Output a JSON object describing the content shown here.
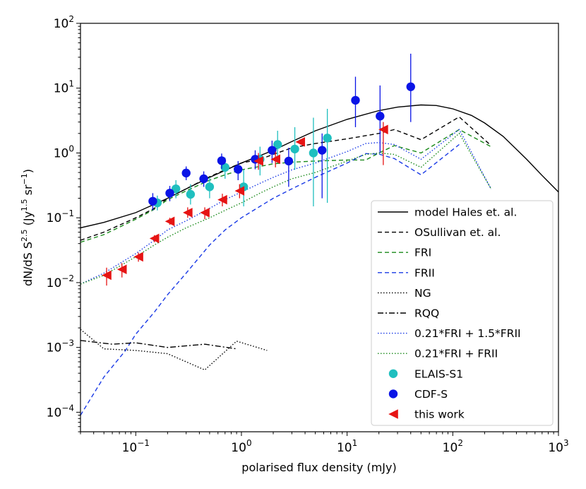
{
  "chart_data": {
    "type": "scatter",
    "xscale": "log",
    "yscale": "log",
    "xlim": [
      0.03,
      1000
    ],
    "ylim": [
      5e-05,
      100
    ],
    "xlabel": "polarised flux density (mJy)",
    "ylabel_main": "dN/dS S",
    "ylabel_exp": "2.5",
    "ylabel_unit_open": " (Jy",
    "ylabel_unit_exp1": "1.5",
    "ylabel_unit_mid": " sr",
    "ylabel_unit_exp2": "−1",
    "ylabel_unit_close": ")",
    "x_ticks": [
      {
        "value": 0.1,
        "base": "10",
        "exp": "−1"
      },
      {
        "value": 1,
        "base": "10",
        "exp": "0"
      },
      {
        "value": 10,
        "base": "10",
        "exp": "1"
      },
      {
        "value": 100,
        "base": "10",
        "exp": "2"
      },
      {
        "value": 1000,
        "base": "10",
        "exp": "3"
      }
    ],
    "y_ticks": [
      {
        "value": 0.0001,
        "base": "10",
        "exp": "−4"
      },
      {
        "value": 0.001,
        "base": "10",
        "exp": "−3"
      },
      {
        "value": 0.01,
        "base": "10",
        "exp": "−2"
      },
      {
        "value": 0.1,
        "base": "10",
        "exp": "−1"
      },
      {
        "value": 1,
        "base": "10",
        "exp": "0"
      },
      {
        "value": 10,
        "base": "10",
        "exp": "1"
      },
      {
        "value": 100,
        "base": "10",
        "exp": "2"
      }
    ],
    "lines": [
      {
        "name": "model Hales et. al.",
        "color": "#000000",
        "dash": "",
        "x": [
          0.03,
          0.05,
          0.1,
          0.2,
          0.3,
          0.5,
          1,
          2,
          3,
          5,
          10,
          20,
          30,
          50,
          70,
          100,
          150,
          200,
          300,
          500,
          700,
          1000
        ],
        "y": [
          0.07,
          0.085,
          0.12,
          0.2,
          0.28,
          0.42,
          0.7,
          1.1,
          1.5,
          2.2,
          3.3,
          4.5,
          5.1,
          5.5,
          5.4,
          4.8,
          3.8,
          2.9,
          1.8,
          0.8,
          0.45,
          0.25
        ]
      },
      {
        "name": "OSullivan et. al.",
        "color": "#000000",
        "dash": "6,4",
        "x": [
          0.03,
          0.05,
          0.1,
          0.15,
          0.2,
          0.3,
          0.5,
          0.7,
          1,
          1.5,
          2,
          3,
          5,
          10,
          20,
          28,
          50,
          115,
          230
        ],
        "y": [
          0.045,
          0.06,
          0.1,
          0.14,
          0.2,
          0.28,
          0.43,
          0.55,
          0.7,
          0.8,
          0.95,
          1.2,
          1.4,
          1.65,
          2.0,
          2.3,
          1.6,
          3.6,
          1.3
        ]
      },
      {
        "name": "FRI",
        "color": "#1a8a1a",
        "dash": "6,4",
        "x": [
          0.03,
          0.05,
          0.1,
          0.15,
          0.2,
          0.3,
          0.5,
          0.7,
          1,
          1.5,
          2,
          3,
          5,
          10,
          15,
          20,
          28,
          50,
          115,
          230
        ],
        "y": [
          0.042,
          0.055,
          0.095,
          0.135,
          0.19,
          0.26,
          0.38,
          0.46,
          0.55,
          0.62,
          0.68,
          0.72,
          0.75,
          0.78,
          0.78,
          1.0,
          1.3,
          1.0,
          2.3,
          1.25
        ]
      },
      {
        "name": "FRII",
        "color": "#1a3ae6",
        "dash": "6,4",
        "x": [
          0.03,
          0.05,
          0.08,
          0.1,
          0.15,
          0.2,
          0.3,
          0.5,
          0.7,
          1,
          1.5,
          2,
          3,
          5,
          10,
          15,
          20,
          28,
          50,
          115
        ],
        "y": [
          9e-05,
          0.00035,
          0.0009,
          0.0016,
          0.0035,
          0.0065,
          0.014,
          0.038,
          0.065,
          0.1,
          0.15,
          0.2,
          0.28,
          0.42,
          0.7,
          0.98,
          0.96,
          0.82,
          0.46,
          1.35
        ]
      },
      {
        "name": "NG",
        "color": "#000000",
        "dash": "1.5,2.5",
        "x": [
          0.03,
          0.05,
          0.1,
          0.2,
          0.45,
          0.9,
          1.75
        ],
        "y": [
          0.0019,
          0.00095,
          0.0009,
          0.0008,
          0.00045,
          0.00125,
          0.0009
        ]
      },
      {
        "name": "RQQ",
        "color": "#000000",
        "dash": "8,3,2,3",
        "x": [
          0.03,
          0.06,
          0.1,
          0.2,
          0.45,
          0.9
        ],
        "y": [
          0.00128,
          0.00112,
          0.00118,
          0.001,
          0.00112,
          0.00095
        ]
      },
      {
        "name": "0.21*FRI + 1.5*FRII",
        "color": "#1a3ae6",
        "dash": "1.5,2.5",
        "x": [
          0.03,
          0.05,
          0.1,
          0.15,
          0.2,
          0.3,
          0.5,
          0.7,
          1,
          1.5,
          2,
          3,
          5,
          10,
          15,
          20,
          28,
          50,
          115,
          230
        ],
        "y": [
          0.0095,
          0.014,
          0.028,
          0.045,
          0.065,
          0.09,
          0.14,
          0.19,
          0.25,
          0.34,
          0.42,
          0.55,
          0.7,
          1.05,
          1.4,
          1.45,
          1.35,
          0.8,
          2.3,
          0.28
        ]
      },
      {
        "name": "0.21*FRI + FRII",
        "color": "#1a8a1a",
        "dash": "1.5,2.5",
        "x": [
          0.03,
          0.05,
          0.1,
          0.15,
          0.2,
          0.3,
          0.5,
          0.7,
          1,
          1.5,
          2,
          3,
          5,
          10,
          15,
          20,
          28,
          50,
          115,
          230
        ],
        "y": [
          0.0095,
          0.013,
          0.025,
          0.038,
          0.05,
          0.07,
          0.1,
          0.13,
          0.17,
          0.24,
          0.3,
          0.4,
          0.5,
          0.75,
          0.95,
          1.0,
          0.95,
          0.6,
          2.0,
          0.28
        ]
      }
    ],
    "points": [
      {
        "name": "ELAIS-S1",
        "color": "#1fbfbf",
        "marker": "circle",
        "x": [
          0.16,
          0.24,
          0.33,
          0.5,
          0.7,
          1.05,
          1.5,
          2.2,
          3.2,
          4.8,
          6.5
        ],
        "y": [
          0.17,
          0.28,
          0.23,
          0.3,
          0.6,
          0.3,
          0.8,
          1.35,
          1.15,
          1.0,
          1.7
        ],
        "ylo": [
          0.13,
          0.2,
          0.16,
          0.2,
          0.4,
          0.15,
          0.45,
          0.7,
          0.55,
          0.15,
          0.17
        ],
        "yhi": [
          0.22,
          0.38,
          0.33,
          0.42,
          0.85,
          0.55,
          1.25,
          2.2,
          2.5,
          3.5,
          4.8
        ]
      },
      {
        "name": "CDF-S",
        "color": "#0a14e6",
        "marker": "circle",
        "x": [
          0.145,
          0.21,
          0.3,
          0.44,
          0.65,
          0.93,
          1.35,
          1.95,
          2.8,
          5.8,
          12,
          20.5,
          40
        ],
        "y": [
          0.18,
          0.24,
          0.49,
          0.4,
          0.76,
          0.56,
          0.8,
          1.1,
          0.75,
          1.1,
          6.5,
          3.7,
          10.5
        ],
        "ylo": [
          0.13,
          0.18,
          0.38,
          0.3,
          0.57,
          0.38,
          0.56,
          0.7,
          0.3,
          0.2,
          2.5,
          1.0,
          3.0
        ],
        "yhi": [
          0.24,
          0.31,
          0.62,
          0.52,
          0.98,
          0.75,
          1.1,
          1.55,
          1.2,
          2.0,
          15,
          11,
          34
        ]
      },
      {
        "name": "this work",
        "color": "#e61414",
        "marker": "triangle-left",
        "x": [
          0.053,
          0.074,
          0.106,
          0.15,
          0.21,
          0.31,
          0.45,
          0.66,
          0.96,
          1.45,
          2.1,
          3.6,
          22
        ],
        "y": [
          0.013,
          0.016,
          0.025,
          0.048,
          0.088,
          0.12,
          0.12,
          0.19,
          0.26,
          0.75,
          0.8,
          1.48,
          2.3
        ],
        "ylo": [
          0.009,
          0.012,
          0.021,
          0.042,
          0.078,
          0.1,
          0.095,
          0.15,
          0.2,
          0.55,
          0.6,
          1.35,
          0.65
        ],
        "yhi": [
          0.017,
          0.02,
          0.029,
          0.054,
          0.1,
          0.145,
          0.145,
          0.235,
          0.33,
          1.0,
          1.05,
          1.62,
          3.0
        ]
      }
    ]
  }
}
